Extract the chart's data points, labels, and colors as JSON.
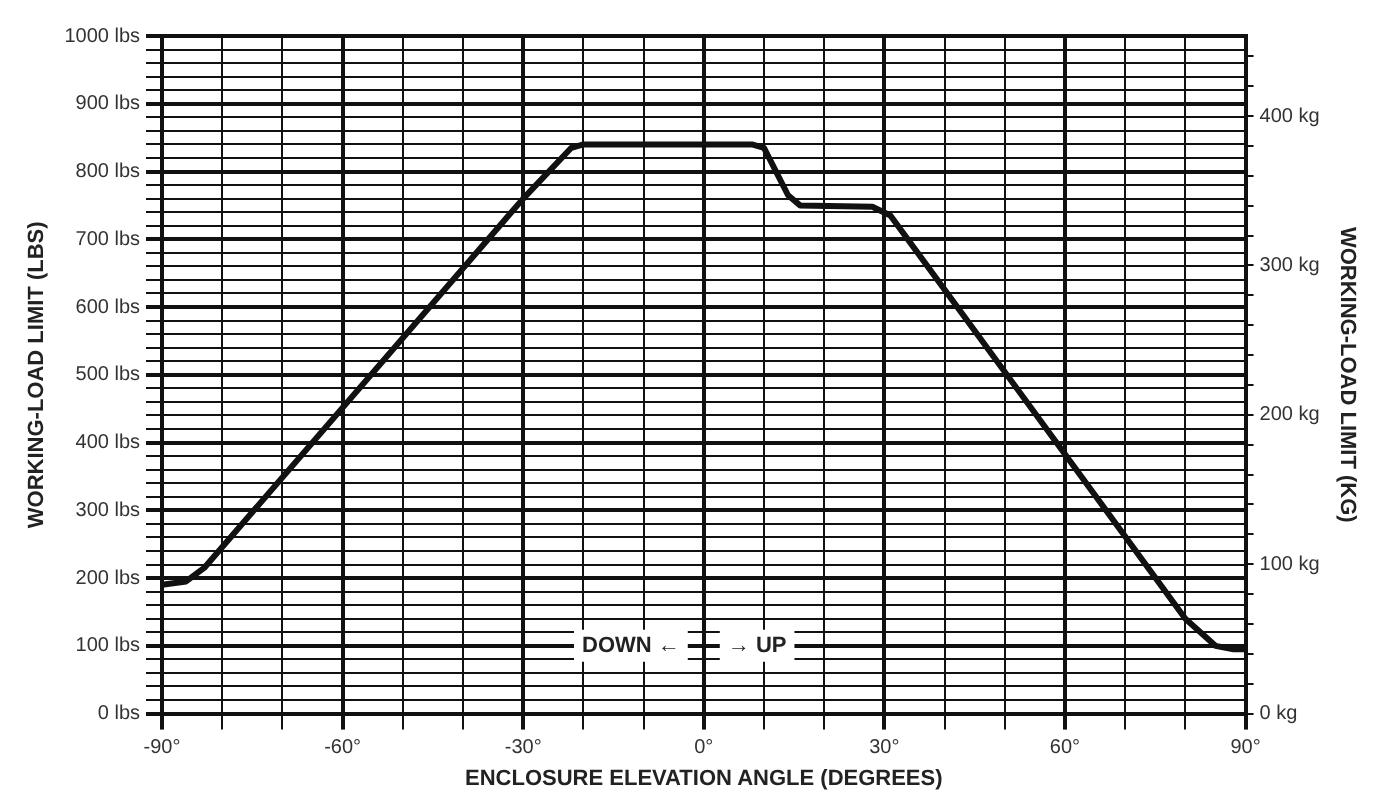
{
  "chart_data": {
    "type": "line",
    "xlabel": "ENCLOSURE ELEVATION ANGLE (DEGREES)",
    "ylabel": "WORKING-LOAD LIMIT (LBS)",
    "y2label": "WORKING-LOAD LIMIT (KG)",
    "x": [
      -90,
      -86,
      -83,
      -30,
      -22,
      -20,
      8,
      10,
      14,
      16,
      28,
      31,
      80,
      85,
      88,
      90
    ],
    "series": [
      {
        "color": "#111111",
        "values": [
          190,
          195,
          215,
          760,
          835,
          840,
          840,
          835,
          765,
          750,
          748,
          735,
          140,
          100,
          95,
          95
        ]
      }
    ],
    "xlim": [
      -90,
      90
    ],
    "xticks": [
      {
        "value": -90,
        "label": "-90°"
      },
      {
        "value": -80,
        "label": null
      },
      {
        "value": -70,
        "label": null
      },
      {
        "value": -60,
        "label": "-60°"
      },
      {
        "value": -50,
        "label": null
      },
      {
        "value": -40,
        "label": null
      },
      {
        "value": -30,
        "label": "-30°"
      },
      {
        "value": -20,
        "label": null
      },
      {
        "value": -10,
        "label": null
      },
      {
        "value": 0,
        "label": "0°"
      },
      {
        "value": 10,
        "label": null
      },
      {
        "value": 20,
        "label": null
      },
      {
        "value": 30,
        "label": "30°"
      },
      {
        "value": 40,
        "label": null
      },
      {
        "value": 50,
        "label": null
      },
      {
        "value": 60,
        "label": "60°"
      },
      {
        "value": 70,
        "label": null
      },
      {
        "value": 80,
        "label": null
      },
      {
        "value": 90,
        "label": "90°"
      }
    ],
    "ylim": [
      0,
      1000
    ],
    "yticks": [
      {
        "value": 0,
        "label": "0 lbs"
      },
      {
        "value": 20,
        "label": null
      },
      {
        "value": 40,
        "label": null
      },
      {
        "value": 60,
        "label": null
      },
      {
        "value": 80,
        "label": null
      },
      {
        "value": 100,
        "label": "100 lbs"
      },
      {
        "value": 120,
        "label": null
      },
      {
        "value": 140,
        "label": null
      },
      {
        "value": 160,
        "label": null
      },
      {
        "value": 180,
        "label": null
      },
      {
        "value": 200,
        "label": "200 lbs"
      },
      {
        "value": 220,
        "label": null
      },
      {
        "value": 240,
        "label": null
      },
      {
        "value": 260,
        "label": null
      },
      {
        "value": 280,
        "label": null
      },
      {
        "value": 300,
        "label": "300 lbs"
      },
      {
        "value": 320,
        "label": null
      },
      {
        "value": 340,
        "label": null
      },
      {
        "value": 360,
        "label": null
      },
      {
        "value": 380,
        "label": null
      },
      {
        "value": 400,
        "label": "400 lbs"
      },
      {
        "value": 420,
        "label": null
      },
      {
        "value": 440,
        "label": null
      },
      {
        "value": 460,
        "label": null
      },
      {
        "value": 480,
        "label": null
      },
      {
        "value": 500,
        "label": "500 lbs"
      },
      {
        "value": 520,
        "label": null
      },
      {
        "value": 540,
        "label": null
      },
      {
        "value": 560,
        "label": null
      },
      {
        "value": 580,
        "label": null
      },
      {
        "value": 600,
        "label": "600 lbs"
      },
      {
        "value": 620,
        "label": null
      },
      {
        "value": 640,
        "label": null
      },
      {
        "value": 660,
        "label": null
      },
      {
        "value": 680,
        "label": null
      },
      {
        "value": 700,
        "label": "700 lbs"
      },
      {
        "value": 720,
        "label": null
      },
      {
        "value": 740,
        "label": null
      },
      {
        "value": 760,
        "label": null
      },
      {
        "value": 780,
        "label": null
      },
      {
        "value": 800,
        "label": "800 lbs"
      },
      {
        "value": 820,
        "label": null
      },
      {
        "value": 840,
        "label": null
      },
      {
        "value": 860,
        "label": null
      },
      {
        "value": 880,
        "label": null
      },
      {
        "value": 900,
        "label": "900 lbs"
      },
      {
        "value": 920,
        "label": null
      },
      {
        "value": 940,
        "label": null
      },
      {
        "value": 960,
        "label": null
      },
      {
        "value": 980,
        "label": null
      },
      {
        "value": 1000,
        "label": "1000 lbs"
      }
    ],
    "y2lim": [
      0,
      453.6
    ],
    "y2ticks": [
      {
        "value": 0,
        "label": "0 kg"
      },
      {
        "value": 20,
        "label": null
      },
      {
        "value": 40,
        "label": null
      },
      {
        "value": 60,
        "label": null
      },
      {
        "value": 80,
        "label": null
      },
      {
        "value": 100,
        "label": "100 kg"
      },
      {
        "value": 120,
        "label": null
      },
      {
        "value": 140,
        "label": null
      },
      {
        "value": 160,
        "label": null
      },
      {
        "value": 180,
        "label": null
      },
      {
        "value": 200,
        "label": "200 kg"
      },
      {
        "value": 220,
        "label": null
      },
      {
        "value": 240,
        "label": null
      },
      {
        "value": 260,
        "label": null
      },
      {
        "value": 280,
        "label": null
      },
      {
        "value": 300,
        "label": "300 kg"
      },
      {
        "value": 320,
        "label": null
      },
      {
        "value": 340,
        "label": null
      },
      {
        "value": 360,
        "label": null
      },
      {
        "value": 380,
        "label": null
      },
      {
        "value": 400,
        "label": "400 kg"
      },
      {
        "value": 420,
        "label": null
      },
      {
        "value": 440,
        "label": null
      }
    ],
    "annotations": [
      "DOWN ←",
      "→ UP"
    ],
    "grid": true,
    "legend": false,
    "marker": "none",
    "line_style": "solid"
  }
}
